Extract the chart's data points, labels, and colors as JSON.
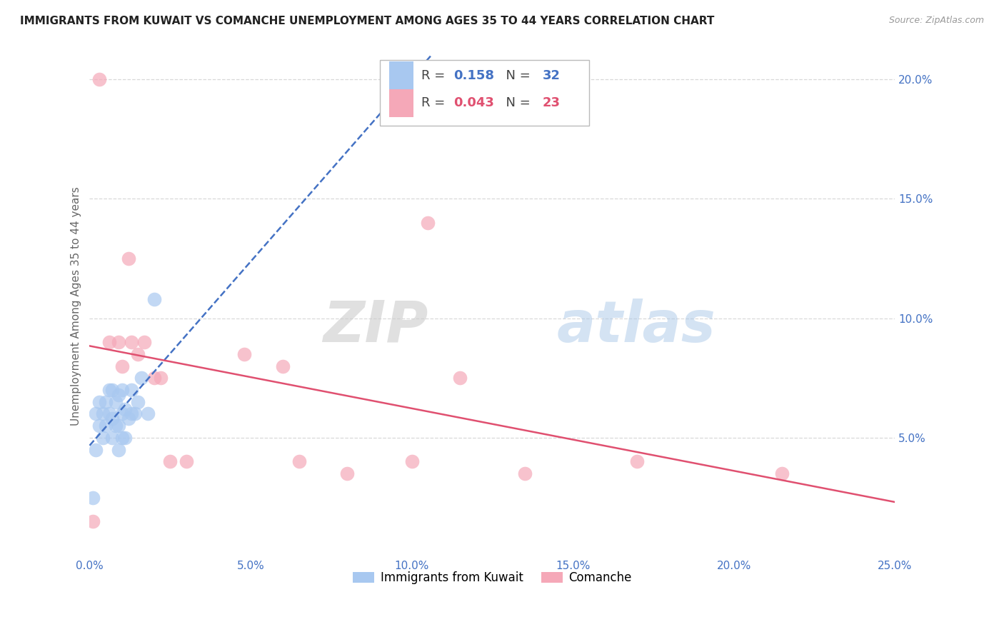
{
  "title": "IMMIGRANTS FROM KUWAIT VS COMANCHE UNEMPLOYMENT AMONG AGES 35 TO 44 YEARS CORRELATION CHART",
  "source": "Source: ZipAtlas.com",
  "ylabel": "Unemployment Among Ages 35 to 44 years",
  "xlim": [
    0.0,
    0.25
  ],
  "ylim": [
    0.0,
    0.21
  ],
  "xticks": [
    0.0,
    0.05,
    0.1,
    0.15,
    0.2,
    0.25
  ],
  "yticks": [
    0.05,
    0.1,
    0.15,
    0.2
  ],
  "ytick_labels": [
    "5.0%",
    "10.0%",
    "15.0%",
    "20.0%"
  ],
  "xtick_labels": [
    "0.0%",
    "5.0%",
    "10.0%",
    "15.0%",
    "20.0%",
    "25.0%"
  ],
  "legend1_r": "0.158",
  "legend1_n": "32",
  "legend2_r": "0.043",
  "legend2_n": "23",
  "blue_color": "#a8c8f0",
  "pink_color": "#f5a8b8",
  "blue_line_color": "#4472c4",
  "pink_line_color": "#e05070",
  "watermark": "ZIPatlas",
  "blue_scatter_x": [
    0.001,
    0.002,
    0.002,
    0.003,
    0.003,
    0.004,
    0.004,
    0.005,
    0.005,
    0.006,
    0.006,
    0.007,
    0.007,
    0.007,
    0.008,
    0.008,
    0.009,
    0.009,
    0.009,
    0.01,
    0.01,
    0.01,
    0.011,
    0.011,
    0.012,
    0.013,
    0.013,
    0.014,
    0.015,
    0.016,
    0.018,
    0.02
  ],
  "blue_scatter_y": [
    0.025,
    0.045,
    0.06,
    0.055,
    0.065,
    0.05,
    0.06,
    0.055,
    0.065,
    0.06,
    0.07,
    0.05,
    0.058,
    0.07,
    0.055,
    0.065,
    0.045,
    0.055,
    0.068,
    0.05,
    0.06,
    0.07,
    0.05,
    0.062,
    0.058,
    0.06,
    0.07,
    0.06,
    0.065,
    0.075,
    0.06,
    0.108
  ],
  "pink_scatter_x": [
    0.001,
    0.003,
    0.006,
    0.009,
    0.01,
    0.012,
    0.013,
    0.015,
    0.017,
    0.02,
    0.022,
    0.025,
    0.03,
    0.048,
    0.06,
    0.065,
    0.08,
    0.1,
    0.105,
    0.115,
    0.135,
    0.17,
    0.215
  ],
  "pink_scatter_y": [
    0.015,
    0.2,
    0.09,
    0.09,
    0.08,
    0.125,
    0.09,
    0.085,
    0.09,
    0.075,
    0.075,
    0.04,
    0.04,
    0.085,
    0.08,
    0.04,
    0.035,
    0.04,
    0.14,
    0.075,
    0.035,
    0.04,
    0.035
  ],
  "grid_color": "#d8d8d8",
  "grid_style": "--",
  "background_color": "#ffffff"
}
